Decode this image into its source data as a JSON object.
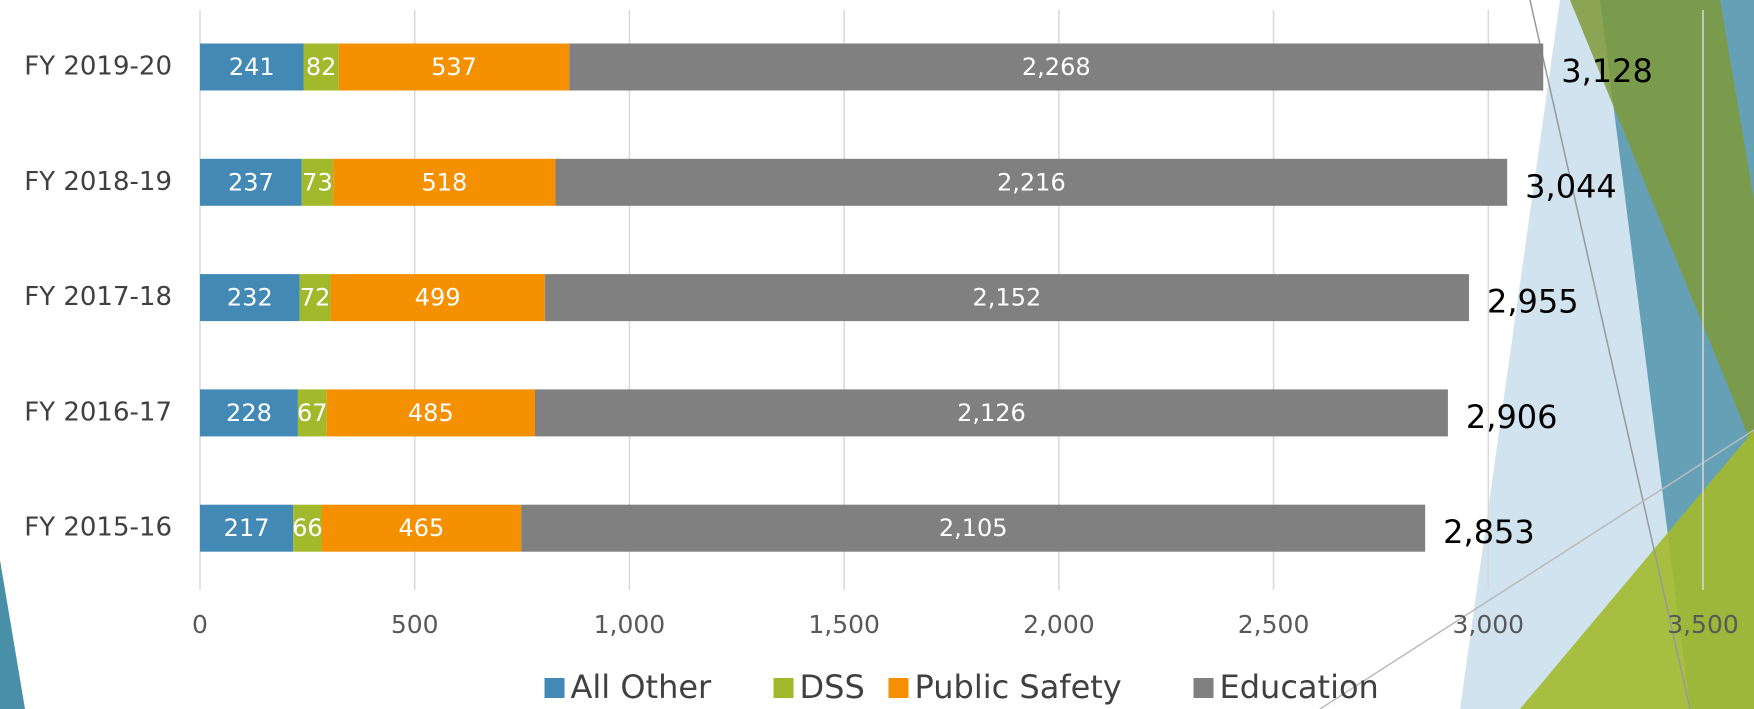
{
  "chart_data": {
    "type": "stacked-bar-horizontal",
    "categories": [
      "FY 2019-20",
      "FY 2018-19",
      "FY 2017-18",
      "FY 2016-17",
      "FY 2015-16"
    ],
    "series": [
      {
        "name": "All Other",
        "color": "#4289b5",
        "values": [
          241,
          237,
          232,
          228,
          217
        ]
      },
      {
        "name": "DSS",
        "color": "#a2b92c",
        "values": [
          82,
          73,
          72,
          67,
          66
        ]
      },
      {
        "name": "Public Safety",
        "color": "#f59000",
        "values": [
          537,
          518,
          499,
          485,
          465
        ]
      },
      {
        "name": "Education",
        "color": "#808080",
        "values": [
          2268,
          2216,
          2152,
          2126,
          2105
        ],
        "value_labels": [
          "2,268",
          "2,216",
          "2,152",
          "2,126",
          "2,105"
        ]
      }
    ],
    "totals": [
      {
        "value": 3128,
        "label": "3,128"
      },
      {
        "value": 3044,
        "label": "3,044"
      },
      {
        "value": 2955,
        "label": "2,955"
      },
      {
        "value": 2906,
        "label": "2,906"
      },
      {
        "value": 2853,
        "label": "2,853"
      }
    ],
    "xlim": [
      0,
      3500
    ],
    "xticks": [
      0,
      500,
      {
        "value": 1000,
        "label": "1,000"
      },
      {
        "value": 1500,
        "label": "1,500"
      },
      {
        "value": 2000,
        "label": "2,000"
      },
      {
        "value": 2500,
        "label": "2,500"
      },
      {
        "value": 3000,
        "label": "3,000"
      },
      {
        "value": 3500,
        "label": "3,500"
      }
    ],
    "grid": true,
    "legend": "bottom"
  }
}
